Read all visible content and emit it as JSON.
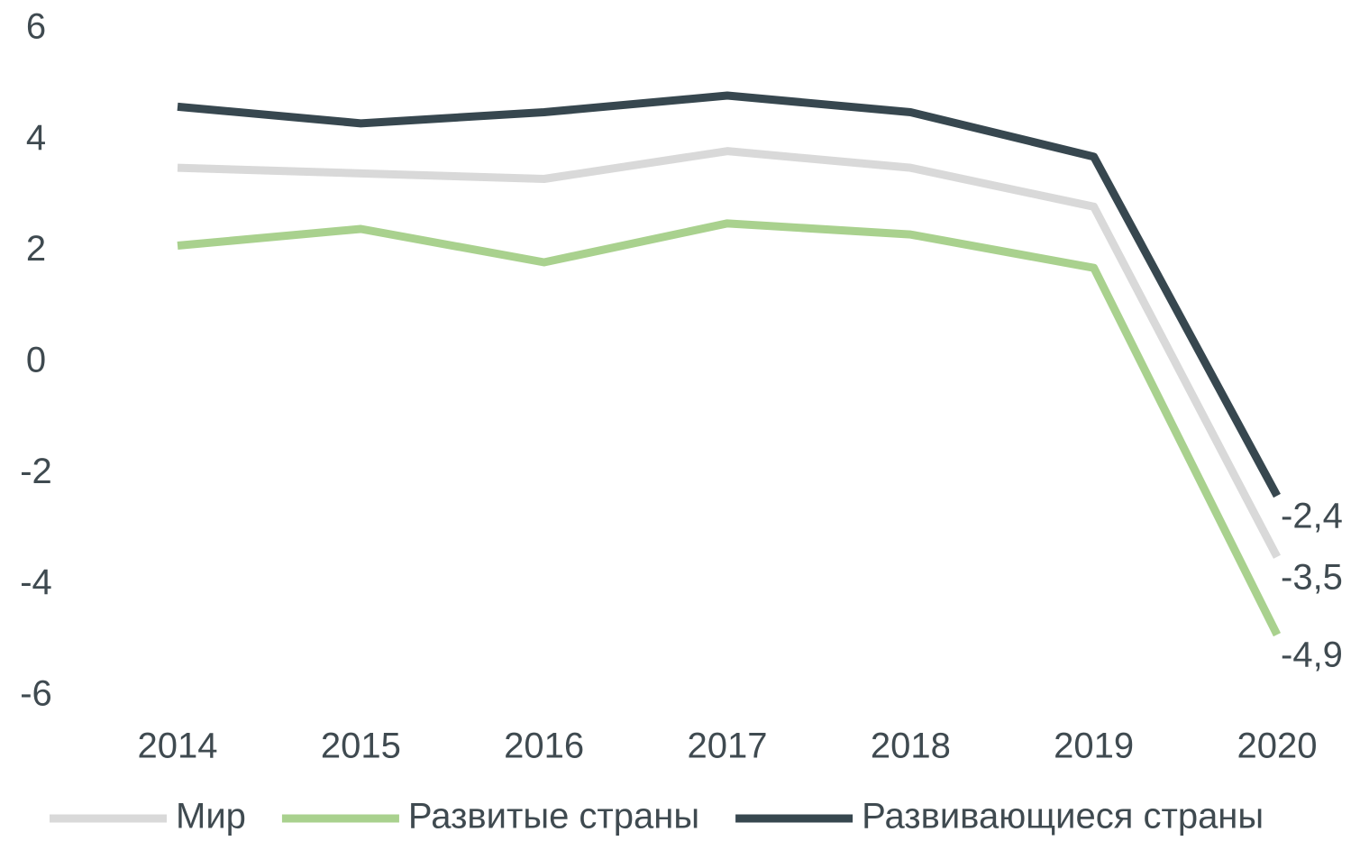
{
  "chart_data": {
    "type": "line",
    "categories": [
      "2014",
      "2015",
      "2016",
      "2017",
      "2018",
      "2019",
      "2020"
    ],
    "series": [
      {
        "name": "Мир",
        "color": "#d9d9d9",
        "values": [
          3.5,
          3.4,
          3.3,
          3.8,
          3.5,
          2.8,
          -3.5
        ],
        "value_labels": [
          null,
          null,
          null,
          null,
          null,
          null,
          "-3,5"
        ]
      },
      {
        "name": "Развитые страны",
        "color": "#a9d18e",
        "values": [
          2.1,
          2.4,
          1.8,
          2.5,
          2.3,
          1.7,
          -4.9
        ],
        "value_labels": [
          null,
          null,
          null,
          null,
          null,
          null,
          "-4,9"
        ]
      },
      {
        "name": "Развивающиеся страны",
        "color": "#37474f",
        "values": [
          4.6,
          4.3,
          4.5,
          4.8,
          4.5,
          3.7,
          -2.4
        ],
        "value_labels": [
          null,
          null,
          null,
          null,
          null,
          null,
          "-2,4"
        ]
      }
    ],
    "ylim": [
      -6,
      6
    ],
    "yticks": [
      -6,
      -4,
      -2,
      0,
      2,
      4,
      6
    ],
    "grid": false,
    "legend": "bottom"
  }
}
